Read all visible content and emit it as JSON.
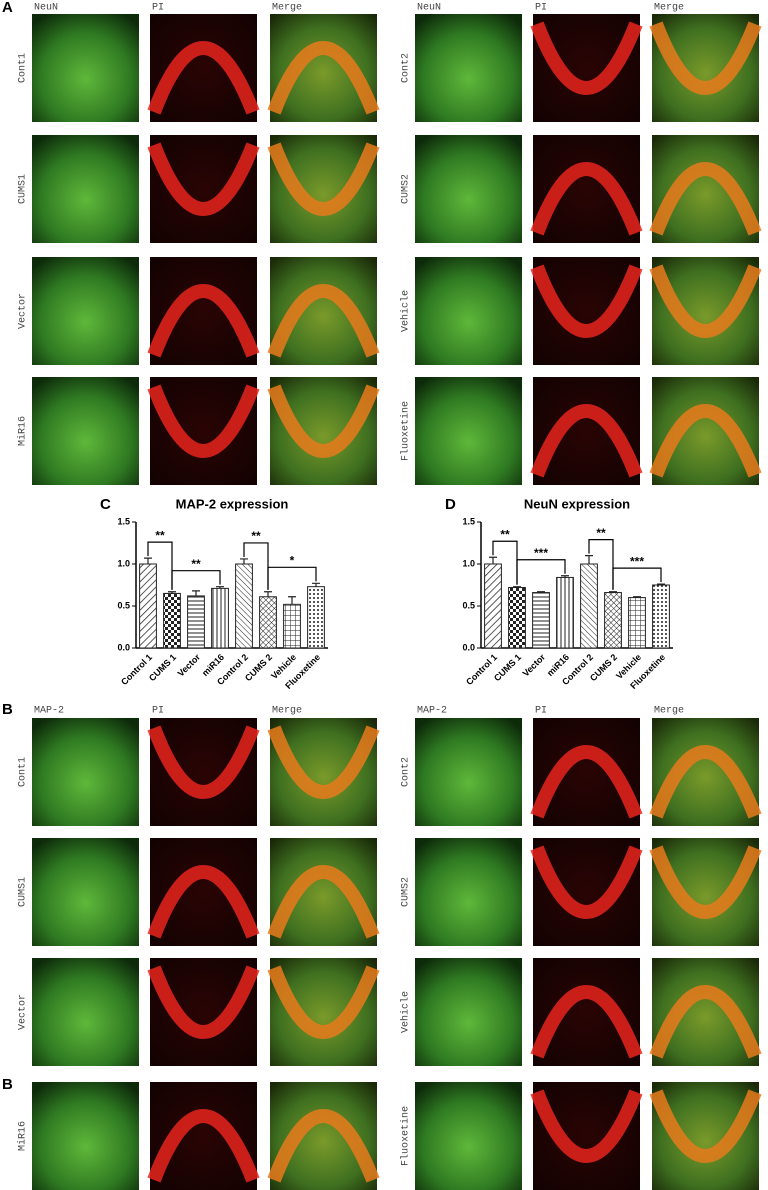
{
  "panels": [
    {
      "letter": "A",
      "groups": [
        {
          "headers": [
            "NeuN",
            "PI",
            "Merge"
          ],
          "rows": [
            "Cont1",
            "CUMS1",
            "Vector",
            "MiR16"
          ]
        },
        {
          "headers": [
            "NeuN",
            "PI",
            "Merge"
          ],
          "rows": [
            "Cont2",
            "CUMS2",
            "Vehicle",
            "Fluoxetine"
          ]
        }
      ]
    },
    {
      "letter": "B",
      "groups": [
        {
          "headers": [
            "MAP-2",
            "PI",
            "Merge"
          ],
          "rows": [
            "Cont1",
            "CUMS1",
            "Vector"
          ]
        },
        {
          "headers": [
            "MAP-2",
            "PI",
            "Merge"
          ],
          "rows": [
            "Cont2",
            "CUMS2",
            "Vehicle"
          ]
        }
      ]
    },
    {
      "letter": "B",
      "groups": [
        {
          "rows": [
            "MiR16"
          ]
        },
        {
          "rows": [
            "Fluoxetine"
          ]
        }
      ]
    }
  ],
  "chart_data": [
    {
      "type": "bar",
      "letter": "C",
      "title": "MAP-2 expression",
      "categories": [
        "Control 1",
        "CUMS 1",
        "Vector",
        "miR16",
        "Control 2",
        "CUMS 2",
        "Vehicle",
        "Fluoxetine"
      ],
      "values": [
        1.0,
        0.65,
        0.62,
        0.71,
        1.0,
        0.61,
        0.52,
        0.73
      ],
      "errors": [
        0.07,
        0.02,
        0.06,
        0.02,
        0.06,
        0.06,
        0.09,
        0.04
      ],
      "color": "#222222",
      "ylim": [
        0,
        1.5
      ],
      "yticks": [
        {
          "value": 0,
          "label": "0.0"
        },
        0.5,
        {
          "value": 1,
          "label": "1.0"
        },
        1.5
      ],
      "annotations": [
        {
          "text": "**",
          "between": [
            "Control 1",
            "CUMS 1"
          ]
        },
        {
          "text": "**",
          "between": [
            "CUMS 1",
            "miR16"
          ]
        },
        {
          "text": "**",
          "between": [
            "Control 2",
            "CUMS 2"
          ]
        },
        {
          "text": "*",
          "between": [
            "CUMS 2",
            "Fluoxetine"
          ]
        }
      ]
    },
    {
      "type": "bar",
      "letter": "D",
      "title": "NeuN expression",
      "categories": [
        "Control 1",
        "CUMS 1",
        "Vector",
        "miR16",
        "Control 2",
        "CUMS 2",
        "Vehicle",
        "Fluoxetine"
      ],
      "values": [
        1.0,
        0.72,
        0.66,
        0.84,
        1.0,
        0.66,
        0.6,
        0.75
      ],
      "errors": [
        0.08,
        0.01,
        0.01,
        0.02,
        0.1,
        0.01,
        0.01,
        0.01
      ],
      "color": "#222222",
      "ylim": [
        0,
        1.5
      ],
      "yticks": [
        {
          "value": 0,
          "label": "0.0"
        },
        0.5,
        {
          "value": 1,
          "label": "1.0"
        },
        1.5
      ],
      "annotations": [
        {
          "text": "**",
          "between": [
            "Control 1",
            "CUMS 1"
          ]
        },
        {
          "text": "***",
          "between": [
            "CUMS 1",
            "miR16"
          ]
        },
        {
          "text": "**",
          "between": [
            "Control 2",
            "CUMS 2"
          ]
        },
        {
          "text": "***",
          "between": [
            "CUMS 2",
            "Fluoxetine"
          ]
        }
      ]
    }
  ]
}
